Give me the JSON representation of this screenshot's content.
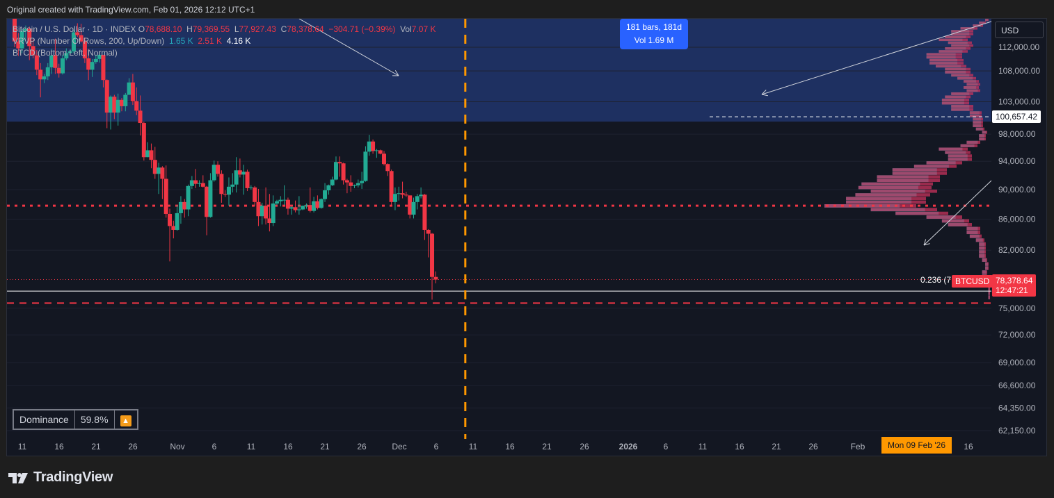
{
  "credit": "Original created with TradingView.com, Feb 01, 2026 12:12 UTC+1",
  "legend": {
    "symbol": "Bitcoin / U.S. Dollar · 1D · INDEX",
    "o_label": "O",
    "o": "78,688.10",
    "h_label": "H",
    "h": "79,369.55",
    "l_label": "L",
    "l": "77,927.43",
    "c_label": "C",
    "c": "78,378.64",
    "change": "−304.71 (−0.39%)",
    "vol_label": "Vol",
    "vol": "7.07 K",
    "vrvp": "VRVP (Number Of Rows, 200, Up/Down)",
    "vrvp_up": "1.65 K",
    "vrvp_down": "2.51 K",
    "vrvp_total": "4.16 K",
    "btcd": "BTCD (Bottom Left, Normal)"
  },
  "currency_button": "USD",
  "measure": {
    "bars": "181 bars, 181d",
    "vol": "Vol 1.69 M"
  },
  "dominance": {
    "label": "Dominance",
    "value": "59.8%",
    "arrow_icon": "🔼"
  },
  "price_tags": {
    "high": "100,657.42",
    "last": "78,378.64",
    "countdown": "12:47:21",
    "symbol": "BTCUSD"
  },
  "fib_label": "0.236 (7",
  "date_tag": "Mon 09 Feb '26",
  "logo": "TradingView",
  "colors": {
    "up": "#22ab94",
    "down": "#f23645",
    "zone": "#1f3265",
    "accent": "#ff9800",
    "vol_up": "#26a6b8",
    "vol_down": "#c8335c"
  },
  "chart_data": {
    "type": "candlestick",
    "price_axis": {
      "scale": "log",
      "ticks": [
        "112,000.00",
        "108,000.00",
        "103,000.00",
        "98,000.00",
        "94,000.00",
        "90,000.00",
        "86,000.00",
        "82,000.00",
        "75,000.00",
        "72,000.00",
        "69,000.00",
        "66,600.00",
        "64,350.00",
        "62,150.00"
      ]
    },
    "time_axis": {
      "ticks": [
        "11",
        "16",
        "21",
        "26",
        "Nov",
        "6",
        "11",
        "16",
        "21",
        "26",
        "Dec",
        "6",
        "11",
        "16",
        "21",
        "26",
        "2026",
        "6",
        "11",
        "16",
        "21",
        "26",
        "Feb",
        "16"
      ],
      "range": [
        "2025-10-10",
        "2026-02-20"
      ]
    },
    "ohlc": [
      [
        "2025-10-10",
        121000,
        122500,
        112000,
        113000
      ],
      [
        "2025-10-11",
        113000,
        114500,
        110500,
        111800
      ],
      [
        "2025-10-12",
        111800,
        115200,
        111000,
        114800
      ],
      [
        "2025-10-13",
        114800,
        115800,
        113000,
        115200
      ],
      [
        "2025-10-14",
        115200,
        115600,
        109800,
        112200
      ],
      [
        "2025-10-15",
        112200,
        113400,
        110100,
        110600
      ],
      [
        "2025-10-16",
        110600,
        111500,
        107300,
        108200
      ],
      [
        "2025-10-17",
        108200,
        109300,
        103700,
        106600
      ],
      [
        "2025-10-18",
        106600,
        107500,
        106000,
        107100
      ],
      [
        "2025-10-19",
        107100,
        109300,
        106500,
        108600
      ],
      [
        "2025-10-20",
        108600,
        111700,
        107500,
        110600
      ],
      [
        "2025-10-21",
        110600,
        113500,
        107500,
        108500
      ],
      [
        "2025-10-22",
        108500,
        109200,
        106900,
        107600
      ],
      [
        "2025-10-23",
        107600,
        110700,
        107400,
        110100
      ],
      [
        "2025-10-24",
        110100,
        111800,
        109800,
        111000
      ],
      [
        "2025-10-25",
        111000,
        111500,
        110700,
        111300
      ],
      [
        "2025-10-26",
        111300,
        115000,
        111000,
        114600
      ],
      [
        "2025-10-27",
        114600,
        116200,
        113800,
        114100
      ],
      [
        "2025-10-28",
        114100,
        116100,
        112800,
        113000
      ],
      [
        "2025-10-29",
        113000,
        113700,
        109300,
        110100
      ],
      [
        "2025-10-30",
        110100,
        111700,
        106500,
        108200
      ],
      [
        "2025-10-31",
        108200,
        110000,
        107000,
        109500
      ],
      [
        "2025-11-01",
        109500,
        110700,
        109200,
        110000
      ],
      [
        "2025-11-02",
        110000,
        111100,
        109400,
        110700
      ],
      [
        "2025-11-03",
        110700,
        110700,
        105300,
        106500
      ],
      [
        "2025-11-04",
        106500,
        106600,
        98900,
        101300
      ],
      [
        "2025-11-05",
        101300,
        104000,
        98700,
        103800
      ],
      [
        "2025-11-06",
        103800,
        104100,
        100300,
        101300
      ],
      [
        "2025-11-07",
        101300,
        104300,
        99300,
        103300
      ],
      [
        "2025-11-08",
        103300,
        103600,
        101500,
        102300
      ],
      [
        "2025-11-09",
        102300,
        104400,
        101500,
        104100
      ],
      [
        "2025-11-10",
        104100,
        106800,
        104300,
        106100
      ],
      [
        "2025-11-11",
        106100,
        107500,
        102500,
        103100
      ],
      [
        "2025-11-12",
        103100,
        105300,
        100900,
        101600
      ],
      [
        "2025-11-13",
        101600,
        104000,
        97800,
        99700
      ],
      [
        "2025-11-14",
        99700,
        99900,
        94100,
        94600
      ],
      [
        "2025-11-15",
        94600,
        96800,
        94600,
        95600
      ],
      [
        "2025-11-16",
        95600,
        96600,
        93000,
        94200
      ],
      [
        "2025-11-17",
        94200,
        96100,
        91500,
        92200
      ],
      [
        "2025-11-18",
        92200,
        93800,
        89400,
        93100
      ],
      [
        "2025-11-19",
        93100,
        93300,
        88700,
        91500
      ],
      [
        "2025-11-20",
        91500,
        93400,
        86200,
        86700
      ],
      [
        "2025-11-21",
        86700,
        87400,
        80600,
        85100
      ],
      [
        "2025-11-22",
        85100,
        85800,
        83500,
        84600
      ],
      [
        "2025-11-23",
        84600,
        87900,
        84500,
        86800
      ],
      [
        "2025-11-24",
        86800,
        89100,
        85400,
        88300
      ],
      [
        "2025-11-25",
        88300,
        88700,
        86200,
        87300
      ],
      [
        "2025-11-26",
        87300,
        90700,
        86400,
        90500
      ],
      [
        "2025-11-27",
        90500,
        91900,
        90100,
        91300
      ],
      [
        "2025-11-28",
        91300,
        92900,
        90200,
        90800
      ],
      [
        "2025-11-29",
        90800,
        91300,
        90400,
        90900
      ],
      [
        "2025-11-30",
        90900,
        92000,
        90300,
        90400
      ],
      [
        "2025-12-01",
        90400,
        90500,
        83900,
        86300
      ],
      [
        "2025-12-02",
        86300,
        92300,
        86200,
        91300
      ],
      [
        "2025-12-03",
        91300,
        94100,
        91100,
        93500
      ],
      [
        "2025-12-04",
        93500,
        94000,
        91800,
        92200
      ],
      [
        "2025-12-05",
        92200,
        92700,
        88200,
        89400
      ],
      [
        "2025-12-06",
        89400,
        89900,
        89000,
        89300
      ],
      [
        "2025-12-07",
        89300,
        91700,
        87800,
        90400
      ],
      [
        "2025-12-08",
        90400,
        92300,
        89600,
        90700
      ],
      [
        "2025-12-09",
        90700,
        94600,
        89600,
        92700
      ],
      [
        "2025-12-10",
        92700,
        94400,
        91700,
        92100
      ],
      [
        "2025-12-11",
        92100,
        93500,
        89300,
        92500
      ],
      [
        "2025-12-12",
        92500,
        92800,
        89800,
        90200
      ],
      [
        "2025-12-13",
        90200,
        90600,
        90000,
        90300
      ],
      [
        "2025-12-14",
        90300,
        90500,
        87800,
        88300
      ],
      [
        "2025-12-15",
        88300,
        90100,
        85100,
        86400
      ],
      [
        "2025-12-16",
        86400,
        88200,
        85300,
        87800
      ],
      [
        "2025-12-17",
        87800,
        90300,
        85300,
        86100
      ],
      [
        "2025-12-18",
        86100,
        89400,
        84400,
        85500
      ],
      [
        "2025-12-19",
        85500,
        89200,
        85100,
        88100
      ],
      [
        "2025-12-20",
        88100,
        88600,
        87900,
        88400
      ],
      [
        "2025-12-21",
        88400,
        89100,
        87700,
        88600
      ],
      [
        "2025-12-22",
        88600,
        90600,
        87900,
        88600
      ],
      [
        "2025-12-23",
        88600,
        88900,
        86600,
        87400
      ],
      [
        "2025-12-24",
        87400,
        87700,
        86600,
        87600
      ],
      [
        "2025-12-25",
        87600,
        88500,
        86900,
        87200
      ],
      [
        "2025-12-26",
        87200,
        89100,
        86600,
        87300
      ],
      [
        "2025-12-27",
        87300,
        87800,
        87200,
        87800
      ],
      [
        "2025-12-28",
        87800,
        88100,
        87400,
        87900
      ],
      [
        "2025-12-29",
        87900,
        90300,
        86900,
        87100
      ],
      [
        "2025-12-30",
        87100,
        89000,
        86900,
        88400
      ],
      [
        "2025-12-31",
        88400,
        89200,
        87300,
        87500
      ],
      [
        "2026-01-01",
        87500,
        88800,
        87400,
        88700
      ],
      [
        "2026-01-02",
        88700,
        90900,
        88300,
        89900
      ],
      [
        "2026-01-03",
        89900,
        90700,
        89300,
        90600
      ],
      [
        "2026-01-04",
        90600,
        91800,
        90500,
        91400
      ],
      [
        "2026-01-05",
        91400,
        94700,
        91300,
        93900
      ],
      [
        "2026-01-06",
        93900,
        94700,
        91800,
        93700
      ],
      [
        "2026-01-07",
        93700,
        93800,
        90700,
        91300
      ],
      [
        "2026-01-08",
        91300,
        91500,
        89500,
        91000
      ],
      [
        "2026-01-09",
        91000,
        92000,
        89700,
        90500
      ],
      [
        "2026-01-10",
        90500,
        90700,
        90200,
        90600
      ],
      [
        "2026-01-11",
        90600,
        91400,
        90300,
        90900
      ],
      [
        "2026-01-12",
        90900,
        92500,
        90100,
        91200
      ],
      [
        "2026-01-13",
        91200,
        96200,
        91100,
        95400
      ],
      [
        "2026-01-14",
        95400,
        97900,
        94800,
        96900
      ],
      [
        "2026-01-15",
        96900,
        97200,
        95100,
        95500
      ],
      [
        "2026-01-16",
        95500,
        95800,
        94500,
        95600
      ],
      [
        "2026-01-17",
        95600,
        95700,
        95000,
        95100
      ],
      [
        "2026-01-18",
        95100,
        95500,
        93400,
        93600
      ],
      [
        "2026-01-19",
        93600,
        93700,
        91900,
        92600
      ],
      [
        "2026-01-20",
        92600,
        92800,
        87700,
        88300
      ],
      [
        "2026-01-21",
        88300,
        90300,
        87200,
        89400
      ],
      [
        "2026-01-22",
        89400,
        90400,
        88500,
        89500
      ],
      [
        "2026-01-23",
        89500,
        91100,
        88800,
        89300
      ],
      [
        "2026-01-24",
        89300,
        89700,
        89000,
        89200
      ],
      [
        "2026-01-25",
        89200,
        89200,
        86100,
        86600
      ],
      [
        "2026-01-26",
        86600,
        88900,
        86100,
        88300
      ],
      [
        "2026-01-27",
        88300,
        89400,
        87300,
        89100
      ],
      [
        "2026-01-28",
        89100,
        90300,
        88800,
        89300
      ],
      [
        "2026-01-29",
        89300,
        89400,
        83300,
        84600
      ],
      [
        "2026-01-30",
        84600,
        84700,
        81100,
        84100
      ],
      [
        "2026-01-31",
        84100,
        84200,
        76000,
        78700
      ],
      [
        "2026-02-01",
        78700,
        79370,
        77930,
        78380
      ]
    ],
    "horizontal_levels": {
      "resistance_zone": [
        100657.42,
        130000
      ],
      "dotted_level": 87800,
      "fib_line": 77000,
      "dashed_support": 75600,
      "high_marker": 100657.42
    },
    "vertical_marker": "2026-02-09"
  }
}
